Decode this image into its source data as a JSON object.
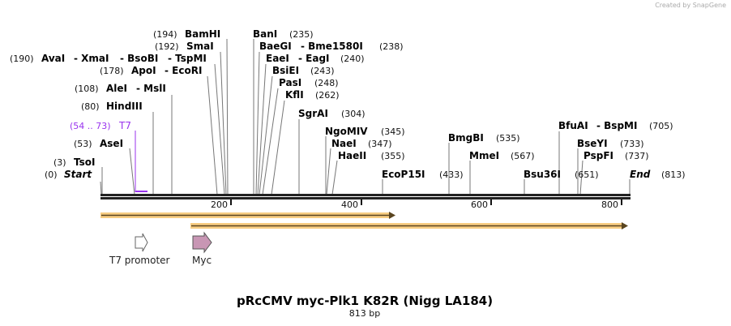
{
  "credit": "Created by SnapGene",
  "title": "pRcCMV myc-Plk1 K82R (Nigg LA184)",
  "length_label": "813 bp",
  "sites": {
    "start": {
      "name": "Start",
      "pos": "(0)"
    },
    "tsoi": {
      "name": "TsoI",
      "pos": "(3)"
    },
    "asei": {
      "name": "AseI",
      "pos": "(53)"
    },
    "t7": {
      "name": "T7",
      "pos": "(54 .. 73)"
    },
    "hindiii": {
      "name": "HindIII",
      "pos": "(80)"
    },
    "alei": {
      "name": "AleI",
      "name2": "- MslI",
      "pos": "(108)"
    },
    "apoi": {
      "name": "ApoI",
      "name2": "- EcoRI",
      "pos": "(178)"
    },
    "avai": {
      "name": "AvaI",
      "name2": "- XmaI",
      "name3": "- BsoBI",
      "name4": "- TspMI",
      "pos": "(190)"
    },
    "smai": {
      "name": "SmaI",
      "pos": "(192)"
    },
    "bamhi": {
      "name": "BamHI",
      "pos": "(194)"
    },
    "bani": {
      "name": "BanI",
      "pos": "(235)"
    },
    "baegi": {
      "name": "BaeGI",
      "name2": "- Bme1580I",
      "pos": "(238)"
    },
    "eaei": {
      "name": "EaeI",
      "name2": "- EagI",
      "pos": "(240)"
    },
    "bsiei": {
      "name": "BsiEI",
      "pos": "(243)"
    },
    "pasi": {
      "name": "PasI",
      "pos": "(248)"
    },
    "kfli": {
      "name": "KflI",
      "pos": "(262)"
    },
    "sgrai": {
      "name": "SgrAI",
      "pos": "(304)"
    },
    "ngomiv": {
      "name": "NgoMIV",
      "pos": "(345)"
    },
    "naei": {
      "name": "NaeI",
      "pos": "(347)"
    },
    "haeii": {
      "name": "HaeII",
      "pos": "(355)"
    },
    "ecop15i": {
      "name": "EcoP15I",
      "pos": "(433)"
    },
    "bmgbi": {
      "name": "BmgBI",
      "pos": "(535)"
    },
    "mmei": {
      "name": "MmeI",
      "pos": "(567)"
    },
    "bsu36i": {
      "name": "Bsu36I",
      "pos": "(651)"
    },
    "bfuai": {
      "name": "BfuAI",
      "name2": "- BspMI",
      "pos": "(705)"
    },
    "bseyi": {
      "name": "BseYI",
      "pos": "(733)"
    },
    "pspfi": {
      "name": "PspFI",
      "pos": "(737)"
    },
    "end": {
      "name": "End",
      "pos": "(813)"
    }
  },
  "ticks": [
    "200",
    "400",
    "600",
    "800"
  ],
  "features": {
    "t7_promoter": "T7 promoter",
    "myc": "Myc"
  },
  "colors": {
    "t7": "#9933ee",
    "orf": "#f7c46c",
    "myc": "#c896b4"
  }
}
